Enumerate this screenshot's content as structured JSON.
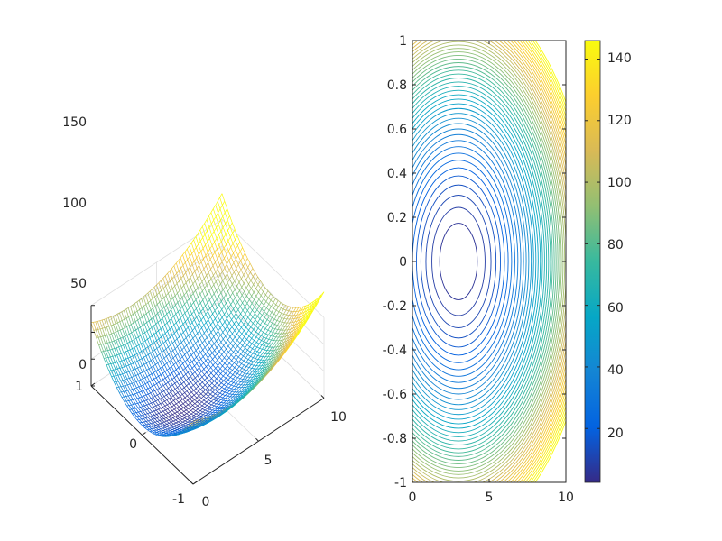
{
  "chart_data": [
    {
      "type": "surface",
      "title": "",
      "function": "z = 2*(x-3)^2 + 100*y^2",
      "x_range": [
        0,
        10
      ],
      "y_range": [
        -1,
        1
      ],
      "zlim": [
        0,
        150
      ],
      "x_ticks": [
        "0",
        "5",
        "10"
      ],
      "y_ticks": [
        "-1",
        "0",
        "1"
      ],
      "z_ticks": [
        "0",
        "50",
        "100",
        "150"
      ],
      "grid": true,
      "style": "mesh",
      "colormap": "parula"
    },
    {
      "type": "contour",
      "title": "",
      "function": "z = 2*(x-3)^2 + 100*y^2",
      "xlim": [
        0,
        10
      ],
      "ylim": [
        -1,
        1
      ],
      "x_ticks": [
        "0",
        "5",
        "10"
      ],
      "y_ticks": [
        "-1",
        "-0.8",
        "-0.6",
        "-0.4",
        "-0.2",
        "0",
        "0.2",
        "0.4",
        "0.6",
        "0.8",
        "1"
      ],
      "level_step": 3,
      "colormap": "parula",
      "colorbar": {
        "range": [
          2.5,
          146
        ],
        "ticks": [
          "20",
          "40",
          "60",
          "80",
          "100",
          "120",
          "140"
        ]
      }
    }
  ]
}
